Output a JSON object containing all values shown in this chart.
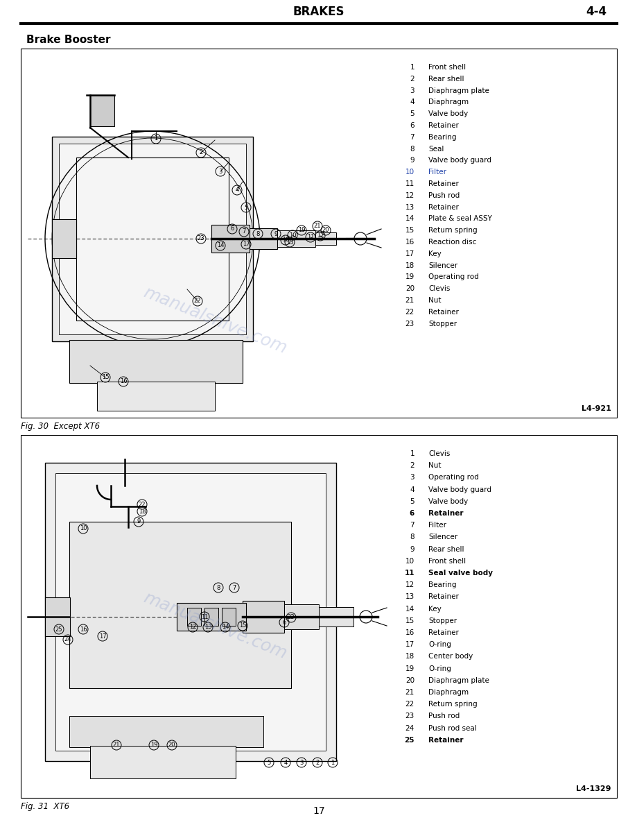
{
  "page_title": "BRAKES",
  "page_number": "4-4",
  "section_title": "Brake Booster",
  "bg_color": "#ffffff",
  "fig1_caption": "Fig. 30  Except XT6",
  "fig1_ref": "L4-921",
  "fig2_caption": "Fig. 31  XT6",
  "fig2_ref": "L4-1329",
  "page_footer": "17",
  "fig1_parts": [
    [
      1,
      "Front shell",
      false
    ],
    [
      2,
      "Rear shell",
      false
    ],
    [
      3,
      "Diaphragm plate",
      false
    ],
    [
      4,
      "Diaphragm",
      false
    ],
    [
      5,
      "Valve body",
      false
    ],
    [
      6,
      "Retainer",
      false
    ],
    [
      7,
      "Bearing",
      false
    ],
    [
      8,
      "Seal",
      false
    ],
    [
      9,
      "Valve body guard",
      false
    ],
    [
      10,
      "Filter",
      "blue"
    ],
    [
      11,
      "Retainer",
      false
    ],
    [
      12,
      "Push rod",
      false
    ],
    [
      13,
      "Retainer",
      false
    ],
    [
      14,
      "Plate & seal ASSY",
      false
    ],
    [
      15,
      "Return spring",
      false
    ],
    [
      16,
      "Reaction disc",
      false
    ],
    [
      17,
      "Key",
      false
    ],
    [
      18,
      "Silencer",
      false
    ],
    [
      19,
      "Operating rod",
      false
    ],
    [
      20,
      "Clevis",
      "bold"
    ],
    [
      21,
      "Nut",
      false
    ],
    [
      22,
      "Retainer",
      "bold"
    ],
    [
      23,
      "Stopper",
      false
    ]
  ],
  "fig2_parts": [
    [
      1,
      "Clevis",
      false
    ],
    [
      2,
      "Nut",
      false
    ],
    [
      3,
      "Operating rod",
      false
    ],
    [
      4,
      "Valve body guard",
      false
    ],
    [
      5,
      "Valve body",
      false
    ],
    [
      6,
      "Retainer",
      "bold"
    ],
    [
      7,
      "Filter",
      false
    ],
    [
      8,
      "Silencer",
      false
    ],
    [
      9,
      "Rear shell",
      false
    ],
    [
      10,
      "Front shell",
      false
    ],
    [
      11,
      "Seal valve body",
      "bold"
    ],
    [
      12,
      "Bearing",
      false
    ],
    [
      13,
      "Retainer",
      false
    ],
    [
      14,
      "Key",
      false
    ],
    [
      15,
      "Stopper",
      false
    ],
    [
      16,
      "Retainer",
      false
    ],
    [
      17,
      "O-ring",
      false
    ],
    [
      18,
      "Center body",
      false
    ],
    [
      19,
      "O-ring",
      false
    ],
    [
      20,
      "Diaphragm plate",
      false
    ],
    [
      21,
      "Diaphragm",
      false
    ],
    [
      22,
      "Return spring",
      false
    ],
    [
      23,
      "Push rod",
      false
    ],
    [
      24,
      "Push rod seal",
      false
    ],
    [
      25,
      "Retainer",
      "bold"
    ]
  ],
  "watermark_color": "#8899cc",
  "highlight_blue": "#2244aa"
}
